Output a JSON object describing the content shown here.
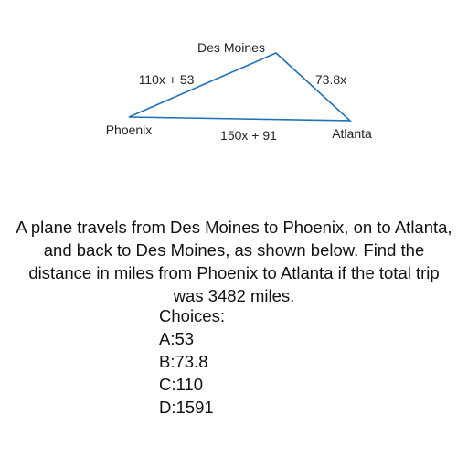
{
  "diagram": {
    "line_color": "#1f6fba",
    "vertices": {
      "des_moines": "Des Moines",
      "phoenix": "Phoenix",
      "atlanta": "Atlanta"
    },
    "edges": {
      "des_moines_phoenix": "110x + 53",
      "des_moines_atlanta": "73.8x",
      "phoenix_atlanta": "150x + 91"
    }
  },
  "question": {
    "text": "A plane travels from Des Moines to Phoenix, on to Atlanta, and back to Des Moines, as shown below. Find the distance in miles from Phoenix to Atlanta if the total trip was 3482 miles.",
    "choices_heading": "Choices:",
    "choices": [
      {
        "key": "A",
        "value": "53"
      },
      {
        "key": "B",
        "value": "73.8"
      },
      {
        "key": "C",
        "value": "110"
      },
      {
        "key": "D",
        "value": "1591"
      }
    ]
  }
}
